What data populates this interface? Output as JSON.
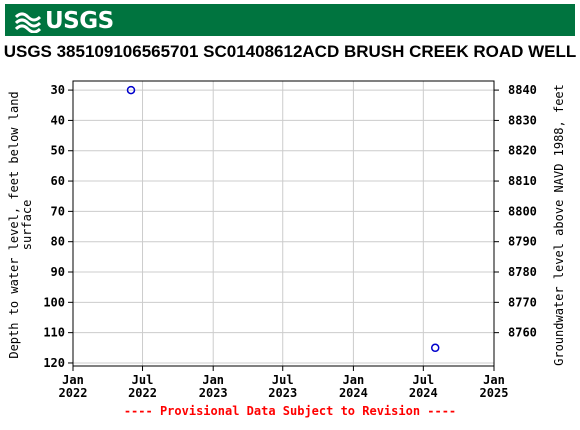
{
  "header": {
    "logo_text": "USGS",
    "logo_icon": "usgs-wave-icon",
    "brand_color": "#00743f"
  },
  "chart_data": {
    "type": "scatter",
    "title": "USGS 385109106565701 SC01408612ACD BRUSH CREEK ROAD WELL",
    "ylabel_lines": [
      "Depth to water level, feet below land",
      "surface"
    ],
    "y2label": "Groundwater level above NAVD 1988, feet",
    "y_ticks": [
      30,
      40,
      50,
      60,
      70,
      80,
      90,
      100,
      110,
      120
    ],
    "y2_ticks": [
      8840,
      8830,
      8820,
      8810,
      8800,
      8790,
      8780,
      8770,
      8760
    ],
    "x_ticks": [
      {
        "month": "Jan",
        "year": "2022"
      },
      {
        "month": "Jul",
        "year": "2022"
      },
      {
        "month": "Jan",
        "year": "2023"
      },
      {
        "month": "Jul",
        "year": "2023"
      },
      {
        "month": "Jan",
        "year": "2024"
      },
      {
        "month": "Jul",
        "year": "2024"
      },
      {
        "month": "Jan",
        "year": "2025"
      }
    ],
    "ylim": [
      27,
      121
    ],
    "y_inverted": true,
    "y2_relation": "elevation = 8870 - depth",
    "grid": true,
    "points": [
      {
        "date": "2022-06",
        "depth": 30
      },
      {
        "date": "2024-08",
        "depth": 115
      }
    ],
    "marker_color": "#0000cc"
  },
  "footer": {
    "note": "---- Provisional Data Subject to Revision ----",
    "note_color": "#ff0000"
  }
}
